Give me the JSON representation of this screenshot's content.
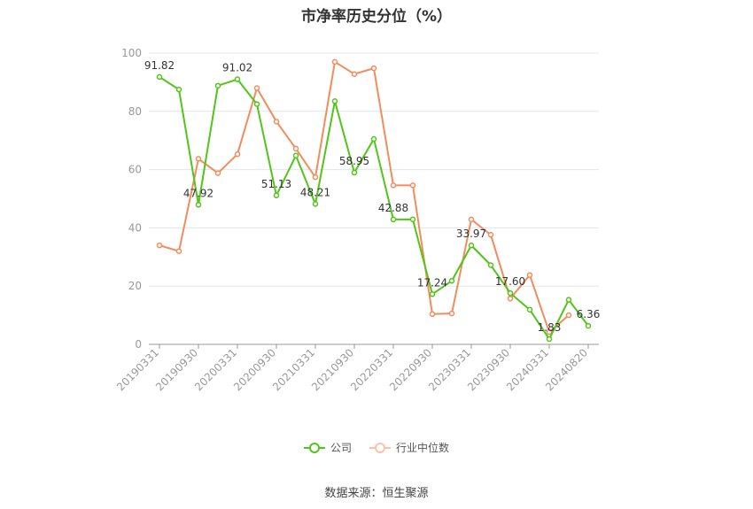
{
  "chart_data": {
    "type": "line",
    "title": "市净率历史分位（%）",
    "ylim": [
      0,
      100
    ],
    "yticks": [
      0,
      20,
      40,
      60,
      80,
      100
    ],
    "x": [
      "20190331",
      "20190630",
      "20190930",
      "20191231",
      "20200331",
      "20200630",
      "20200930",
      "20201231",
      "20210331",
      "20210630",
      "20210930",
      "20211231",
      "20220331",
      "20220630",
      "20220930",
      "20221231",
      "20230331",
      "20230630",
      "20230930",
      "20231231",
      "20240331",
      "20240630",
      "20240820"
    ],
    "x_tick_labels": [
      "20190331",
      "20190930",
      "20200331",
      "20200930",
      "20210331",
      "20210930",
      "20220331",
      "20220930",
      "20230331",
      "20230930",
      "20240331",
      "20240820"
    ],
    "series": [
      {
        "name": "公司",
        "color": "#52c41a",
        "values": [
          91.82,
          87.5,
          47.92,
          88.8,
          91.02,
          82.5,
          51.13,
          64.8,
          48.21,
          83.5,
          58.95,
          70.5,
          42.88,
          42.9,
          17.24,
          21.8,
          33.97,
          27.2,
          17.6,
          11.9,
          1.83,
          15.3,
          6.36
        ],
        "labels": {
          "0": "91.82",
          "2": "47.92",
          "4": "91.02",
          "6": "51.13",
          "8": "48.21",
          "10": "58.95",
          "12": "42.88",
          "14": "17.24",
          "16": "33.97",
          "18": "17.60",
          "20": "1.83",
          "22": "6.36"
        }
      },
      {
        "name": "行业中位数",
        "color": "#f28c5e",
        "values": [
          34.0,
          32.0,
          63.7,
          58.8,
          65.3,
          88.0,
          76.5,
          67.2,
          57.4,
          97.0,
          92.8,
          94.8,
          54.6,
          54.6,
          10.4,
          10.6,
          42.9,
          37.6,
          15.7,
          23.8,
          4.2,
          10.0,
          null
        ]
      }
    ],
    "grid": true,
    "legend_position": "bottom"
  },
  "source_text": "数据来源：恒生聚源"
}
